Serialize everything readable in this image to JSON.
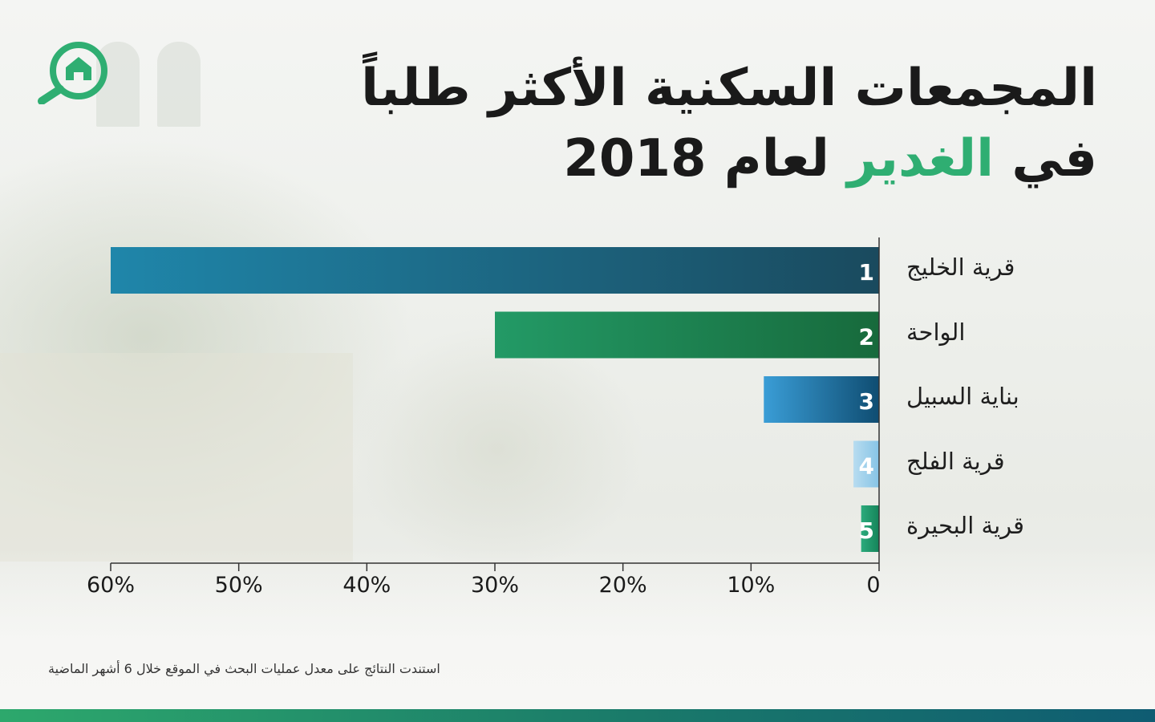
{
  "title": {
    "line1": "المجمعات السكنية الأكثر طلباً",
    "line2_prefix": "في",
    "line2_highlight": "الغدير",
    "line2_suffix": "لعام 2018"
  },
  "footnote": "استندت النتائج على معدل عمليات البحث في الموقع خلال 6 أشهر الماضية",
  "colors": {
    "accent": "#2fae72",
    "title": "#1a1a1a",
    "bar_gradients": [
      [
        "#1f86aa",
        "#1a4a5e"
      ],
      [
        "#239a66",
        "#176a3c"
      ],
      [
        "#3a9dd6",
        "#0f4d72"
      ],
      [
        "#b8dcf0",
        "#86c4e6"
      ],
      [
        "#2cab7c",
        "#15845a"
      ]
    ]
  },
  "icons": {
    "logo": "home-search-icon"
  },
  "chart_data": {
    "type": "bar",
    "orientation": "horizontal",
    "direction": "right-to-left",
    "categories": [
      "قرية الخليج",
      "الواحة",
      "بناية السبيل",
      "قرية الفلج",
      "قرية البحيرة"
    ],
    "ranks": [
      "1",
      "2",
      "3",
      "4",
      "5"
    ],
    "values": [
      60,
      30,
      9,
      2,
      1.4
    ],
    "unit": "%",
    "xlim": [
      0,
      60
    ],
    "xticks": [
      "0",
      "10%",
      "20%",
      "30%",
      "40%",
      "50%",
      "60%"
    ],
    "grid": false,
    "legend": "none"
  }
}
